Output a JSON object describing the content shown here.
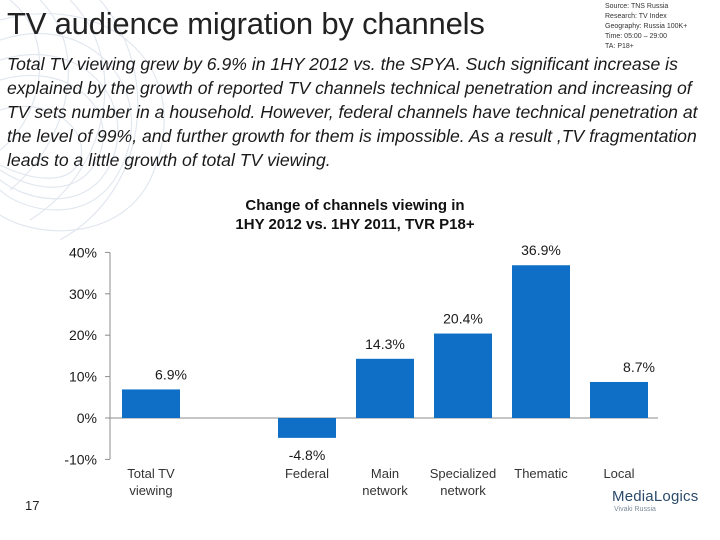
{
  "slide": {
    "title": "TV audience migration by channels",
    "source_lines": [
      "Source: TNS Russia",
      "Research: TV Index",
      "Geography: Russia 100K+",
      "Time: 05:00 – 29:00",
      "TA: P18+"
    ],
    "paragraph": "Total TV viewing grew by 6.9% in 1HY 2012 vs. the SPYA. Such significant increase is explained by the growth of reported TV channels technical penetration and increasing of TV sets number in a household. However, federal channels have technical penetration at the level of 99%, and further growth for them is impossible. As a result ,TV fragmentation leads to a little growth of total TV viewing.",
    "page_number": "17",
    "logo": {
      "main": "MediaLogics",
      "sub": "Vivaki Russia"
    }
  },
  "chart_data": {
    "type": "bar",
    "title_lines": [
      "Change of channels viewing in",
      "1HY 2012 vs. 1HY 2011, TVR P18+"
    ],
    "categories": [
      [
        "Total TV",
        "viewing"
      ],
      [
        "",
        ""
      ],
      [
        "Federal",
        ""
      ],
      [
        "Main",
        "network"
      ],
      [
        "Specialized",
        "network"
      ],
      [
        "Thematic",
        ""
      ],
      [
        "Local",
        ""
      ]
    ],
    "values": [
      6.9,
      null,
      -4.8,
      14.3,
      20.4,
      36.9,
      8.7
    ],
    "value_labels": [
      "6.9%",
      "",
      "-4.8%",
      "14.3%",
      "20.4%",
      "36.9%",
      "8.7%"
    ],
    "y_ticks": [
      -10,
      0,
      10,
      20,
      30,
      40
    ],
    "y_tick_labels": [
      "-10%",
      "0%",
      "10%",
      "20%",
      "30%",
      "40%"
    ],
    "ylim": [
      -10,
      40
    ],
    "grid": false,
    "bar_color": "#0f6fc6"
  }
}
